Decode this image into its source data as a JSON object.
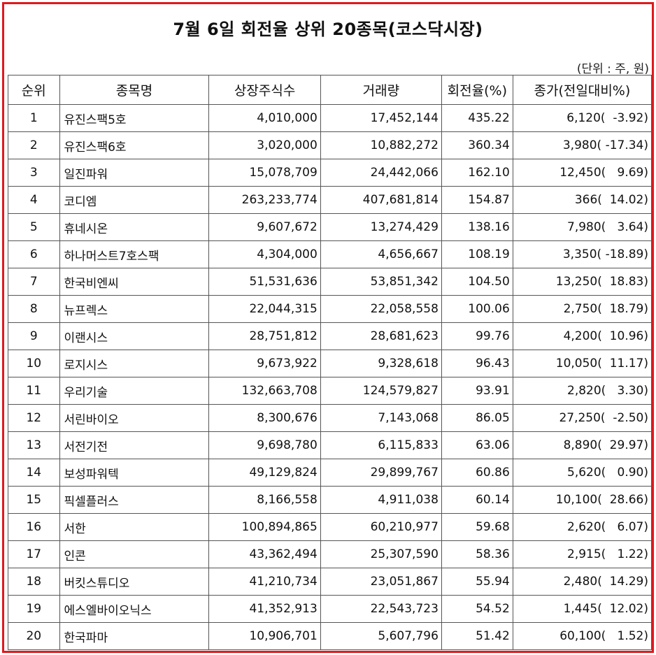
{
  "title": "7월 6일 회전율 상위 20종목(코스닥시장)",
  "unit_note": "(단위 : 주, 원)",
  "columns": [
    "순위",
    "종목명",
    "상장주식수",
    "거래량",
    "회전율(%)",
    "종가(전일대비%)"
  ],
  "rows": [
    {
      "rank": "1",
      "name": "유진스팩5호",
      "listed_shares": "4,010,000",
      "volume": "17,452,144",
      "turnover": "435.22",
      "close": "6,120(  -3.92)"
    },
    {
      "rank": "2",
      "name": "유진스팩6호",
      "listed_shares": "3,020,000",
      "volume": "10,882,272",
      "turnover": "360.34",
      "close": "3,980( -17.34)"
    },
    {
      "rank": "3",
      "name": "일진파워",
      "listed_shares": "15,078,709",
      "volume": "24,442,066",
      "turnover": "162.10",
      "close": "12,450(   9.69)"
    },
    {
      "rank": "4",
      "name": "코디엠",
      "listed_shares": "263,233,774",
      "volume": "407,681,814",
      "turnover": "154.87",
      "close": "366(  14.02)"
    },
    {
      "rank": "5",
      "name": "휴네시온",
      "listed_shares": "9,607,672",
      "volume": "13,274,429",
      "turnover": "138.16",
      "close": "7,980(   3.64)"
    },
    {
      "rank": "6",
      "name": "하나머스트7호스팩",
      "listed_shares": "4,304,000",
      "volume": "4,656,667",
      "turnover": "108.19",
      "close": "3,350( -18.89)"
    },
    {
      "rank": "7",
      "name": "한국비엔씨",
      "listed_shares": "51,531,636",
      "volume": "53,851,342",
      "turnover": "104.50",
      "close": "13,250(  18.83)"
    },
    {
      "rank": "8",
      "name": "뉴프렉스",
      "listed_shares": "22,044,315",
      "volume": "22,058,558",
      "turnover": "100.06",
      "close": "2,750(  18.79)"
    },
    {
      "rank": "9",
      "name": "이랜시스",
      "listed_shares": "28,751,812",
      "volume": "28,681,623",
      "turnover": "99.76",
      "close": "4,200(  10.96)"
    },
    {
      "rank": "10",
      "name": "로지시스",
      "listed_shares": "9,673,922",
      "volume": "9,328,618",
      "turnover": "96.43",
      "close": "10,050(  11.17)"
    },
    {
      "rank": "11",
      "name": "우리기술",
      "listed_shares": "132,663,708",
      "volume": "124,579,827",
      "turnover": "93.91",
      "close": "2,820(   3.30)"
    },
    {
      "rank": "12",
      "name": "서린바이오",
      "listed_shares": "8,300,676",
      "volume": "7,143,068",
      "turnover": "86.05",
      "close": "27,250(  -2.50)"
    },
    {
      "rank": "13",
      "name": "서전기전",
      "listed_shares": "9,698,780",
      "volume": "6,115,833",
      "turnover": "63.06",
      "close": "8,890(  29.97)"
    },
    {
      "rank": "14",
      "name": "보성파워텍",
      "listed_shares": "49,129,824",
      "volume": "29,899,767",
      "turnover": "60.86",
      "close": "5,620(   0.90)"
    },
    {
      "rank": "15",
      "name": "픽셀플러스",
      "listed_shares": "8,166,558",
      "volume": "4,911,038",
      "turnover": "60.14",
      "close": "10,100(  28.66)"
    },
    {
      "rank": "16",
      "name": "서한",
      "listed_shares": "100,894,865",
      "volume": "60,210,977",
      "turnover": "59.68",
      "close": "2,620(   6.07)"
    },
    {
      "rank": "17",
      "name": "인콘",
      "listed_shares": "43,362,494",
      "volume": "25,307,590",
      "turnover": "58.36",
      "close": "2,915(   1.22)"
    },
    {
      "rank": "18",
      "name": "버킷스튜디오",
      "listed_shares": "41,210,734",
      "volume": "23,051,867",
      "turnover": "55.94",
      "close": "2,480(  14.29)"
    },
    {
      "rank": "19",
      "name": "에스엘바이오닉스",
      "listed_shares": "41,352,913",
      "volume": "22,543,723",
      "turnover": "54.52",
      "close": "1,445(  12.02)"
    },
    {
      "rank": "20",
      "name": "한국파마",
      "listed_shares": "10,906,701",
      "volume": "5,607,796",
      "turnover": "51.42",
      "close": "60,100(   1.52)"
    }
  ],
  "colors": {
    "border": "#e0191e",
    "grid": "#555555",
    "text": "#111111"
  }
}
